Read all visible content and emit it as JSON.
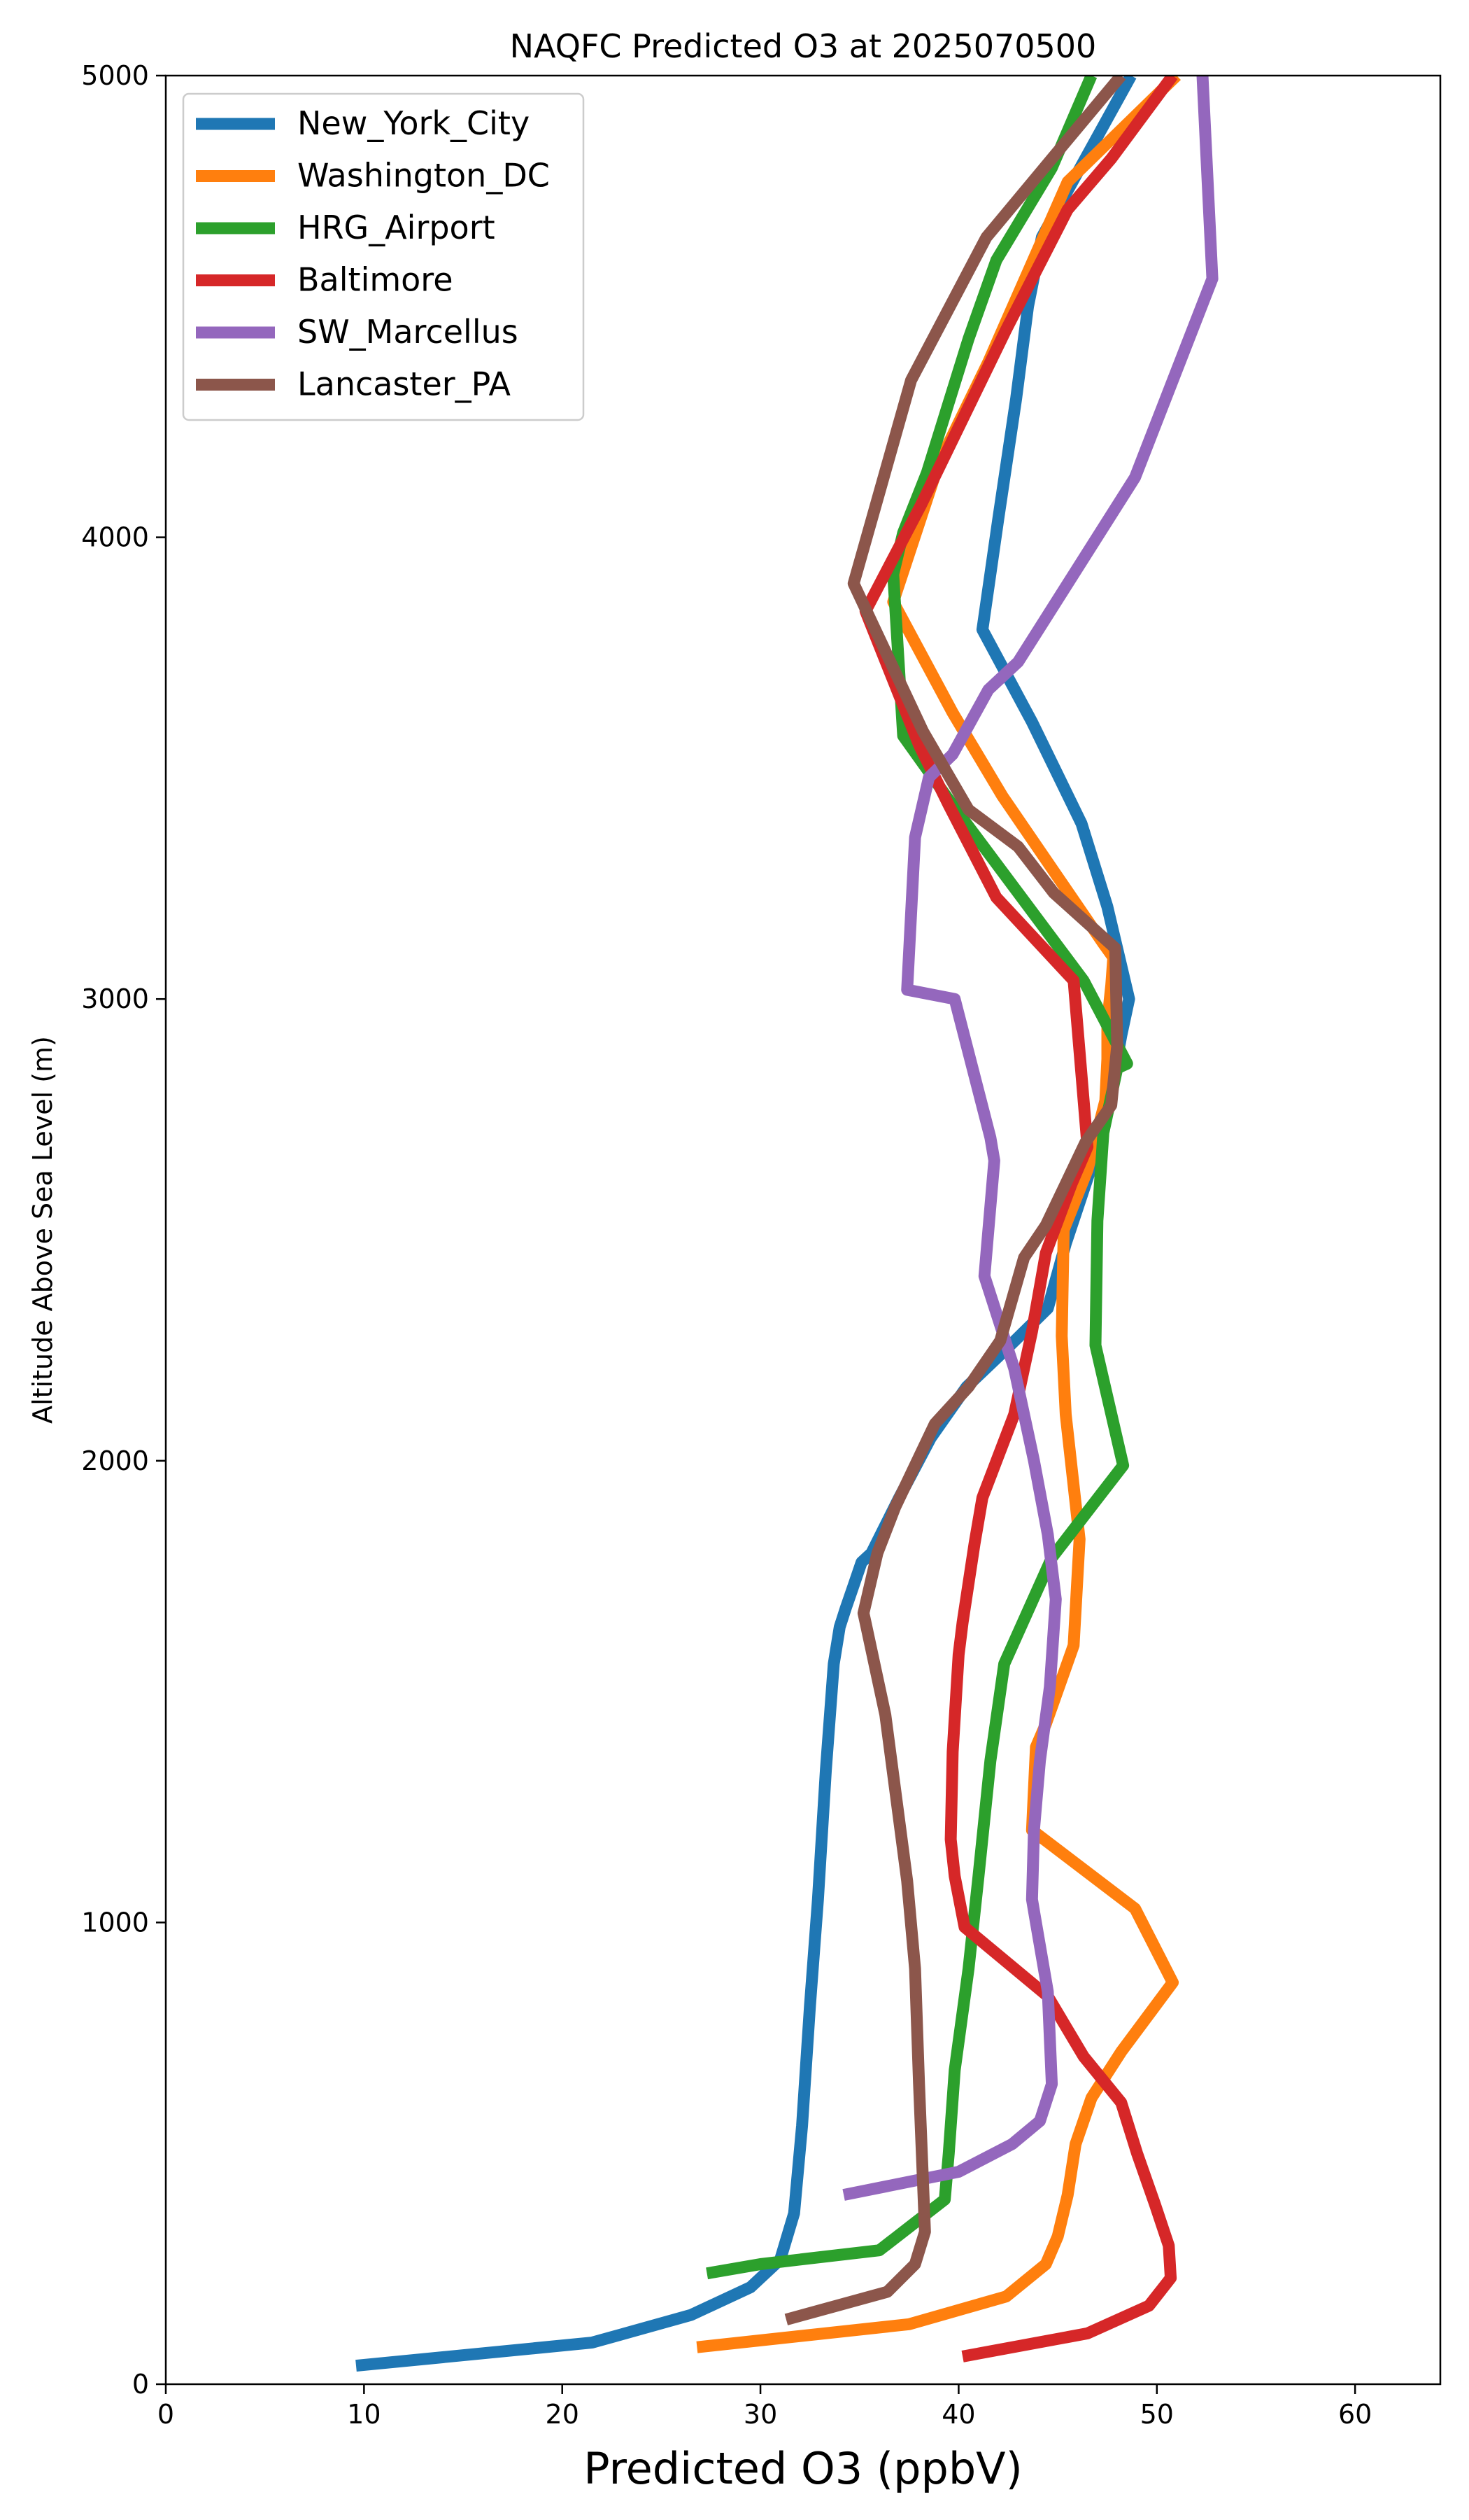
{
  "chart_data": {
    "type": "line",
    "title": "NAQFC Predicted O3 at 2025070500",
    "xlabel": "Predicted O3 (ppbV)",
    "ylabel": "Altitude Above Sea Level (m)",
    "xlim": [
      0,
      64.3
    ],
    "ylim": [
      0,
      5000
    ],
    "xticks": [
      0,
      10,
      20,
      30,
      40,
      50,
      60
    ],
    "yticks": [
      0,
      1000,
      2000,
      3000,
      4000,
      5000
    ],
    "grid": false,
    "legend_position": "upper-left",
    "series": [
      {
        "name": "New_York_City",
        "color": "#1f77b4",
        "x": [
          9.6,
          21.5,
          26.5,
          29.5,
          31.0,
          31.7,
          32.1,
          32.5,
          32.9,
          33.3,
          33.7,
          34.0,
          34.3,
          34.7,
          35.1,
          35.6,
          37.0,
          38.6,
          40.4,
          42.6,
          44.5,
          45.4,
          46.8,
          47.7,
          48.2,
          48.6,
          47.5,
          46.2,
          43.7,
          41.2,
          42.0,
          42.9,
          43.5,
          44.2,
          48.7
        ],
        "y": [
          40,
          90,
          150,
          210,
          270,
          370,
          560,
          820,
          1050,
          1330,
          1560,
          1640,
          1680,
          1730,
          1780,
          1800,
          1920,
          2050,
          2160,
          2250,
          2330,
          2470,
          2650,
          2800,
          2920,
          3000,
          3200,
          3380,
          3600,
          3800,
          4040,
          4300,
          4500,
          4650,
          5000
        ]
      },
      {
        "name": "Washington_DC",
        "color": "#ff7f0e",
        "x": [
          26.8,
          37.5,
          42.4,
          44.4,
          45.0,
          45.5,
          45.9,
          46.7,
          48.2,
          50.8,
          48.9,
          43.7,
          43.9,
          44.4,
          45.8,
          46.1,
          45.4,
          45.2,
          45.3,
          46.5,
          47.4,
          47.5,
          47.5,
          47.7,
          47.8,
          47.3,
          42.2,
          39.7,
          36.7,
          39.0,
          41.5,
          45.5,
          51.0
        ],
        "y": [
          80,
          130,
          190,
          260,
          320,
          410,
          520,
          620,
          720,
          870,
          1030,
          1200,
          1380,
          1430,
          1600,
          1830,
          2100,
          2270,
          2500,
          2630,
          2780,
          2870,
          2950,
          3030,
          3090,
          3120,
          3440,
          3620,
          3860,
          4160,
          4380,
          4770,
          5000
        ]
      },
      {
        "name": "HRG_Airport",
        "color": "#2ca02c",
        "x": [
          27.3,
          30.0,
          36.0,
          39.3,
          39.5,
          39.8,
          40.5,
          41.0,
          41.6,
          42.3,
          44.7,
          48.3,
          46.9,
          47.0,
          47.3,
          48.0,
          48.5,
          46.3,
          39.7,
          37.2,
          36.7,
          37.2,
          38.4,
          40.5,
          41.9,
          44.7,
          46.7
        ],
        "y": [
          240,
          260,
          290,
          400,
          500,
          680,
          900,
          1100,
          1350,
          1560,
          1790,
          1990,
          2250,
          2520,
          2710,
          2850,
          2860,
          3040,
          3420,
          3570,
          3920,
          4010,
          4140,
          4430,
          4600,
          4800,
          5000
        ]
      },
      {
        "name": "Baltimore",
        "color": "#d62728",
        "x": [
          40.2,
          46.5,
          49.6,
          50.7,
          50.6,
          49.9,
          49.0,
          48.2,
          46.3,
          44.5,
          40.3,
          39.8,
          39.6,
          39.7,
          40.0,
          40.2,
          40.8,
          41.2,
          42.8,
          43.7,
          44.4,
          45.7,
          46.5,
          45.8,
          41.9,
          39.5,
          38.0,
          35.3,
          38.1,
          42.4,
          45.5,
          47.7,
          50.8
        ],
        "y": [
          60,
          110,
          170,
          230,
          300,
          390,
          500,
          610,
          710,
          840,
          990,
          1100,
          1180,
          1370,
          1580,
          1650,
          1820,
          1920,
          2100,
          2280,
          2450,
          2600,
          2680,
          3040,
          3220,
          3420,
          3550,
          3840,
          4070,
          4450,
          4710,
          4820,
          5000
        ]
      },
      {
        "name": "SW_Marcellus",
        "color": "#9467bd",
        "x": [
          34.2,
          40.0,
          42.7,
          44.1,
          44.7,
          44.5,
          43.9,
          43.7,
          43.8,
          43.9,
          44.1,
          44.6,
          44.9,
          44.5,
          43.8,
          42.8,
          41.3,
          41.8,
          41.6,
          39.8,
          37.4,
          37.8,
          38.5,
          39.7,
          41.5,
          43.0,
          48.9,
          52.8,
          52.3
        ],
        "y": [
          410,
          460,
          520,
          570,
          650,
          850,
          1000,
          1050,
          1200,
          1250,
          1350,
          1510,
          1700,
          1840,
          2000,
          2200,
          2400,
          2650,
          2700,
          3000,
          3020,
          3350,
          3480,
          3530,
          3670,
          3730,
          4130,
          4560,
          5000
        ]
      },
      {
        "name": "Lancaster_PA",
        "color": "#8c564b",
        "x": [
          31.3,
          36.4,
          37.8,
          38.3,
          38.2,
          38.0,
          37.8,
          37.4,
          36.3,
          35.3,
          35.2,
          35.9,
          36.8,
          38.8,
          40.5,
          42.1,
          43.3,
          44.4,
          45.4,
          46.4,
          47.7,
          48.0,
          47.9,
          44.8,
          43.0,
          40.5,
          38.2,
          34.7,
          37.6,
          41.4,
          44.7,
          48.2
        ],
        "y": [
          140,
          200,
          260,
          330,
          440,
          650,
          900,
          1090,
          1450,
          1650,
          1670,
          1800,
          1900,
          2080,
          2160,
          2260,
          2440,
          2510,
          2600,
          2690,
          2770,
          2900,
          3110,
          3230,
          3330,
          3410,
          3580,
          3900,
          4340,
          4650,
          4820,
          5000
        ]
      }
    ]
  }
}
